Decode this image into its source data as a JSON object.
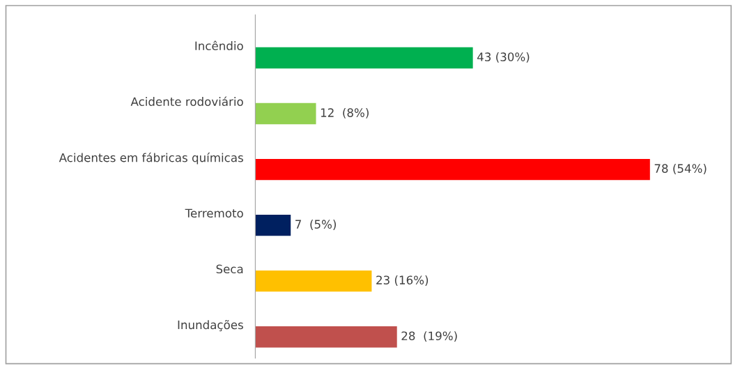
{
  "chart_data": {
    "type": "bar",
    "orientation": "horizontal",
    "categories": [
      "Incêndio",
      "Acidente rodoviário",
      "Acidentes em fábricas químicas",
      "Terremoto",
      "Seca",
      "Inundações"
    ],
    "values": [
      43,
      12,
      78,
      7,
      23,
      28
    ],
    "colors": [
      "#00b050",
      "#92d050",
      "#ff0000",
      "#002060",
      "#ffc000",
      "#c0504d"
    ],
    "value_labels": [
      "43 (30%)",
      "12  (8%)",
      "78 (54%)",
      "7  (5%)",
      "23 (16%)",
      "28  (19%)"
    ],
    "tick_labels": "y",
    "grid": false
  }
}
